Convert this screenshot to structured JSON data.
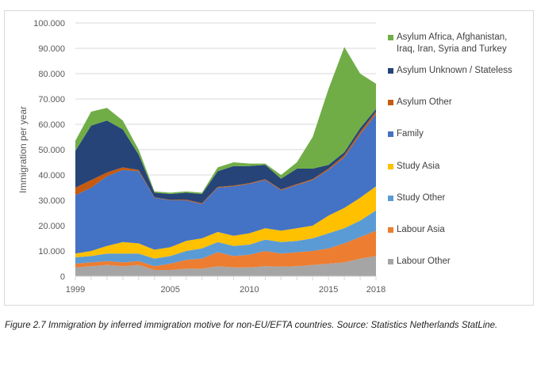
{
  "chart_data": {
    "type": "area",
    "stacked": true,
    "title": "",
    "xlabel": "",
    "ylabel": "Immigration per year",
    "ylim": [
      0,
      100000
    ],
    "yticks": [
      0,
      10000,
      20000,
      30000,
      40000,
      50000,
      60000,
      70000,
      80000,
      90000,
      100000
    ],
    "ytick_labels": [
      "0",
      "10.000",
      "20.000",
      "30.000",
      "40.000",
      "50.000",
      "60.000",
      "70.000",
      "80.000",
      "90.000",
      "100.000"
    ],
    "x": [
      1999,
      2000,
      2001,
      2002,
      2003,
      2004,
      2005,
      2006,
      2007,
      2008,
      2009,
      2010,
      2011,
      2012,
      2013,
      2014,
      2015,
      2016,
      2017,
      2018
    ],
    "xtick_labels": [
      "1999",
      "2005",
      "2010",
      "2015",
      "2018"
    ],
    "xtick_label_years": [
      1999,
      2005,
      2010,
      2015,
      2018
    ],
    "grid": "horizontal",
    "legend_position": "right",
    "series": [
      {
        "name": "Labour Other",
        "color": "#a5a5a5",
        "values": [
          3500,
          4000,
          4500,
          4000,
          4500,
          2500,
          2500,
          3000,
          3000,
          4000,
          3500,
          3500,
          4000,
          3800,
          4000,
          4500,
          5000,
          5500,
          7000,
          8000
        ]
      },
      {
        "name": "Labour Asia",
        "color": "#ed7d31",
        "values": [
          1500,
          1500,
          1500,
          1500,
          1500,
          1500,
          2500,
          3500,
          4000,
          5500,
          4500,
          5000,
          6000,
          5200,
          5500,
          5500,
          6000,
          7500,
          8500,
          10000
        ]
      },
      {
        "name": "Study Other",
        "color": "#5b9bd5",
        "values": [
          2500,
          2500,
          3000,
          3500,
          3000,
          3000,
          3000,
          3500,
          4000,
          4000,
          4000,
          4000,
          4500,
          4500,
          4500,
          5000,
          6000,
          6000,
          6500,
          8000
        ]
      },
      {
        "name": "Study Asia",
        "color": "#ffc000",
        "values": [
          1500,
          2000,
          3000,
          4500,
          4000,
          3500,
          3500,
          4000,
          4000,
          4000,
          4000,
          4500,
          4500,
          4500,
          5000,
          5000,
          7000,
          8000,
          9000,
          9500
        ]
      },
      {
        "name": "Family",
        "color": "#4472c4",
        "values": [
          23000,
          25000,
          27500,
          28500,
          28500,
          20500,
          18500,
          16000,
          13500,
          17500,
          19500,
          19500,
          19000,
          16000,
          17000,
          18000,
          18000,
          20000,
          25000,
          28500
        ]
      },
      {
        "name": "Asylum Other",
        "color": "#c55a11",
        "values": [
          3000,
          3000,
          1500,
          1000,
          500,
          200,
          200,
          300,
          300,
          300,
          300,
          300,
          300,
          300,
          400,
          400,
          500,
          800,
          1000,
          1000
        ]
      },
      {
        "name": "Asylum Unknown / Stateless",
        "color": "#264478",
        "values": [
          14500,
          21500,
          20500,
          15000,
          6000,
          1800,
          2300,
          2700,
          3700,
          6200,
          7700,
          6700,
          5700,
          4200,
          6100,
          4100,
          1500,
          1200,
          1500,
          1000
        ]
      },
      {
        "name": "Asylum Africa, Afghanistan, Iraq, Iran, Syria and Turkey",
        "color": "#70ad47",
        "values": [
          4000,
          5500,
          5000,
          3500,
          2000,
          500,
          500,
          500,
          500,
          1500,
          1500,
          1000,
          500,
          1500,
          2500,
          12500,
          30000,
          41500,
          21500,
          10000
        ]
      }
    ],
    "legend_order": [
      "Asylum Africa, Afghanistan, Iraq, Iran, Syria and Turkey",
      "Asylum Unknown / Stateless",
      "Asylum Other",
      "Family",
      "Study Asia",
      "Study Other",
      "Labour Asia",
      "Labour Other"
    ]
  },
  "legend": {
    "items": [
      {
        "label_line1": "Asylum Africa, Afghanistan,",
        "label_line2": "Iraq, Iran, Syria and Turkey",
        "color": "#70ad47"
      },
      {
        "label_line1": "Asylum Unknown / Stateless",
        "label_line2": "",
        "color": "#264478"
      },
      {
        "label_line1": "Asylum Other",
        "label_line2": "",
        "color": "#c55a11"
      },
      {
        "label_line1": "Family",
        "label_line2": "",
        "color": "#4472c4"
      },
      {
        "label_line1": "Study Asia",
        "label_line2": "",
        "color": "#ffc000"
      },
      {
        "label_line1": "Study Other",
        "label_line2": "",
        "color": "#5b9bd5"
      },
      {
        "label_line1": "Labour Asia",
        "label_line2": "",
        "color": "#ed7d31"
      },
      {
        "label_line1": "Labour Other",
        "label_line2": "",
        "color": "#a5a5a5"
      }
    ]
  },
  "caption": {
    "text": "Figure 2.7 Immigration by inferred immigration motive for non-EU/EFTA countries. Source: Statistics Netherlands StatLine."
  }
}
